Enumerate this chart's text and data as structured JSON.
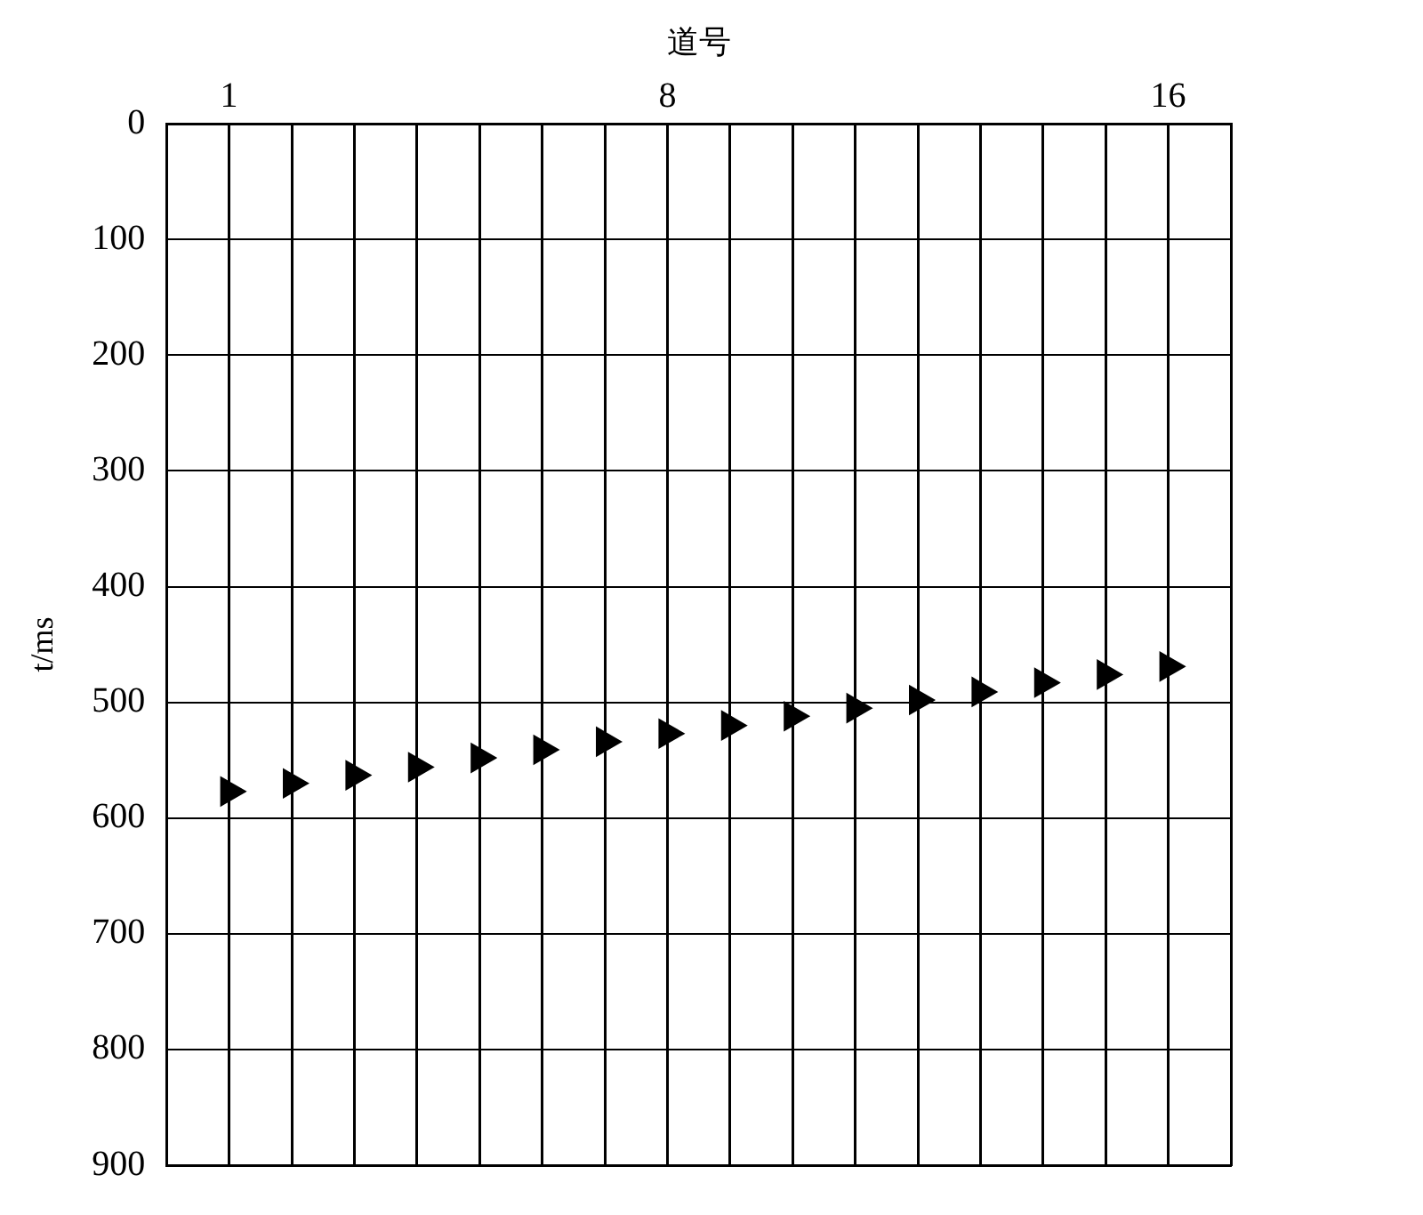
{
  "chart_data": {
    "type": "scatter",
    "xlabel": "道号",
    "ylabel": "t/ms",
    "x": [
      1,
      2,
      3,
      4,
      5,
      6,
      7,
      8,
      9,
      10,
      11,
      12,
      13,
      14,
      15,
      16
    ],
    "values": [
      577,
      570,
      563,
      556,
      548,
      541,
      534,
      527,
      520,
      512,
      505,
      498,
      491,
      483,
      476,
      469
    ],
    "color": "#000000",
    "marker": "triangle",
    "grid": true,
    "xlim": [
      0,
      17
    ],
    "xticks": [
      1,
      {
        "value": 2,
        "label": null
      },
      {
        "value": 3,
        "label": null
      },
      {
        "value": 4,
        "label": null
      },
      {
        "value": 5,
        "label": null
      },
      {
        "value": 6,
        "label": null
      },
      {
        "value": 7,
        "label": null
      },
      8,
      {
        "value": 9,
        "label": null
      },
      {
        "value": 10,
        "label": null
      },
      {
        "value": 11,
        "label": null
      },
      {
        "value": 12,
        "label": null
      },
      {
        "value": 13,
        "label": null
      },
      {
        "value": 14,
        "label": null
      },
      {
        "value": 15,
        "label": null
      },
      16
    ],
    "ylim": [
      900,
      0
    ],
    "yticks": [
      0,
      100,
      200,
      300,
      400,
      500,
      600,
      700,
      800,
      900
    ]
  }
}
